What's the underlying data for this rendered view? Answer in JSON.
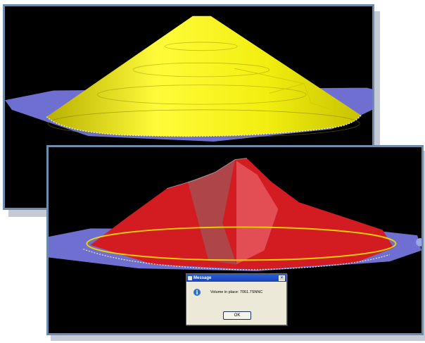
{
  "colors": {
    "background": "#000000",
    "frame_border": "#6d8cab",
    "base_plane": "#6e6fd0",
    "cone": "#f1f000",
    "pile": "#e8202a",
    "boundary": "#f0d000"
  },
  "top_view": {
    "model": "cone-surface-icon",
    "base": "base-plane"
  },
  "bottom_view": {
    "model": "stockpile-surface-icon",
    "base": "base-plane"
  },
  "dialog": {
    "title": "Message",
    "message": "Volume in place: 7061.7SNNC",
    "ok_label": "OK",
    "close_label": "×",
    "info_glyph": "i",
    "info_icon": "info-icon"
  }
}
